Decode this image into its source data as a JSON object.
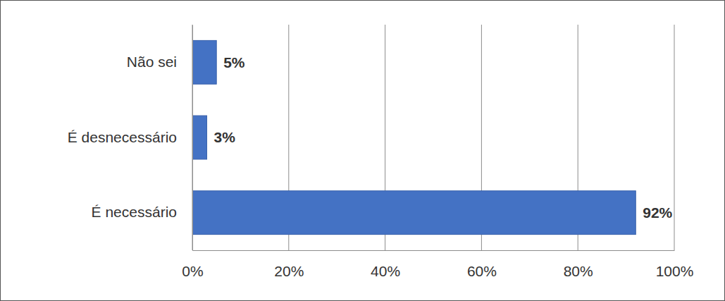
{
  "chart_data": {
    "type": "bar",
    "orientation": "horizontal",
    "categories": [
      "Não sei",
      "É desnecessário",
      "É necessário"
    ],
    "values": [
      5,
      3,
      92
    ],
    "value_labels": [
      "5%",
      "3%",
      "92%"
    ],
    "data_labels": true,
    "color": "#4472c4",
    "xlim": [
      0,
      100
    ],
    "xticks": [
      {
        "value": 0,
        "label": "0%"
      },
      {
        "value": 20,
        "label": "20%"
      },
      {
        "value": 40,
        "label": "40%"
      },
      {
        "value": 60,
        "label": "60%"
      },
      {
        "value": 80,
        "label": "80%"
      },
      {
        "value": 100,
        "label": "100%"
      }
    ],
    "grid": true
  }
}
